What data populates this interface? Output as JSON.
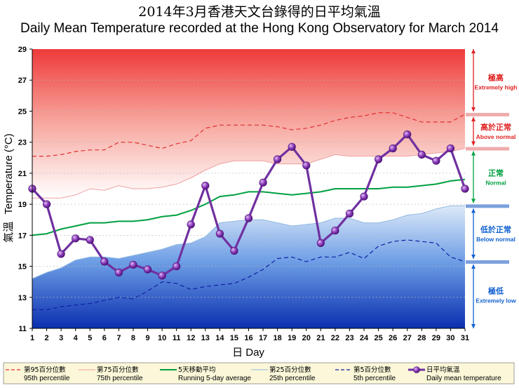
{
  "chart_data": {
    "type": "line",
    "title_zh": "2014年3月香港天文台錄得的日平均氣溫",
    "title": "Daily Mean Temperature recorded at the Hong Kong Observatory for March 2014",
    "xlabel_zh": "日",
    "xlabel": "Day",
    "ylabel_zh": "氣溫",
    "ylabel": "Temperature (°C)",
    "ylim": [
      11,
      29
    ],
    "yticks": [
      "11",
      "13",
      "15",
      "17",
      "19",
      "21",
      "23",
      "25",
      "27",
      "29"
    ],
    "x": [
      "1",
      "2",
      "3",
      "4",
      "5",
      "6",
      "7",
      "8",
      "9",
      "10",
      "11",
      "12",
      "13",
      "14",
      "15",
      "16",
      "17",
      "18",
      "19",
      "20",
      "21",
      "22",
      "23",
      "24",
      "25",
      "26",
      "27",
      "28",
      "29",
      "30",
      "31"
    ],
    "series": [
      {
        "name": "95th percentile",
        "name_zh": "第95百分位數",
        "color": "#e03030",
        "values": [
          22.1,
          22.1,
          22.2,
          22.4,
          22.5,
          22.5,
          23.0,
          23.0,
          22.8,
          22.6,
          22.9,
          23.1,
          23.9,
          24.1,
          24.1,
          24.1,
          24.1,
          24.0,
          23.8,
          23.9,
          24.1,
          24.4,
          24.6,
          24.7,
          24.9,
          24.9,
          24.6,
          24.3,
          24.3,
          24.3,
          24.8
        ]
      },
      {
        "name": "75th percentile",
        "name_zh": "第75百分位數",
        "color": "#f0a0a0",
        "values": [
          19.4,
          19.4,
          19.4,
          19.6,
          20.0,
          19.9,
          20.2,
          20.0,
          20.0,
          20.1,
          20.3,
          20.7,
          21.2,
          21.6,
          21.8,
          21.8,
          21.8,
          21.6,
          21.6,
          21.6,
          21.9,
          22.2,
          22.1,
          22.1,
          22.1,
          22.1,
          22.1,
          22.2,
          22.3,
          22.4,
          22.6
        ]
      },
      {
        "name": "Running 5-day average",
        "name_zh": "5天移動平均",
        "color": "#00a040",
        "values": [
          17.0,
          17.1,
          17.4,
          17.6,
          17.8,
          17.8,
          17.9,
          17.9,
          18.0,
          18.2,
          18.3,
          18.6,
          19.0,
          19.5,
          19.6,
          19.8,
          19.8,
          19.7,
          19.6,
          19.7,
          19.8,
          20.0,
          20.0,
          20.0,
          20.0,
          20.1,
          20.1,
          20.2,
          20.3,
          20.5,
          20.6
        ]
      },
      {
        "name": "25th percentile",
        "name_zh": "第25百分位數",
        "color": "#90b8e0",
        "values": [
          14.2,
          14.6,
          14.9,
          15.4,
          15.6,
          15.6,
          15.5,
          15.7,
          15.9,
          16.1,
          16.4,
          16.5,
          16.9,
          17.8,
          17.9,
          18.0,
          18.0,
          17.8,
          17.6,
          17.7,
          17.8,
          18.1,
          18.1,
          17.8,
          17.8,
          18.0,
          18.3,
          18.4,
          18.7,
          18.9,
          18.9
        ]
      },
      {
        "name": "5th percentile",
        "name_zh": "第5百分位數",
        "color": "#1020a0",
        "values": [
          12.2,
          12.2,
          12.4,
          12.5,
          12.6,
          12.8,
          13.0,
          12.9,
          13.4,
          14.0,
          13.9,
          13.5,
          13.7,
          13.8,
          13.9,
          14.3,
          14.8,
          15.5,
          15.6,
          15.3,
          15.6,
          15.6,
          15.9,
          15.5,
          16.3,
          16.6,
          16.7,
          16.6,
          16.5,
          15.6,
          15.3
        ]
      },
      {
        "name": "Daily mean temperature",
        "name_zh": "日平均氣溫",
        "color": "#7030a0",
        "values": [
          20.0,
          19.0,
          15.8,
          16.8,
          16.7,
          15.3,
          14.6,
          15.1,
          14.8,
          14.4,
          15.0,
          17.7,
          20.2,
          17.1,
          16.0,
          18.1,
          20.4,
          21.9,
          22.7,
          21.5,
          16.5,
          17.3,
          18.4,
          19.5,
          21.9,
          22.6,
          23.5,
          22.2,
          21.8,
          22.6,
          20.0
        ]
      }
    ],
    "bands": [
      {
        "zh": "極高",
        "en": "Extremely high",
        "color": "#e02020"
      },
      {
        "zh": "高於正常",
        "en": "Above normal",
        "color": "#e02020"
      },
      {
        "zh": "正常",
        "en": "Normal",
        "color": "#00a040"
      },
      {
        "zh": "低於正常",
        "en": "Below normal",
        "color": "#1060d0"
      },
      {
        "zh": "極低",
        "en": "Extremely low",
        "color": "#1060d0"
      }
    ]
  }
}
